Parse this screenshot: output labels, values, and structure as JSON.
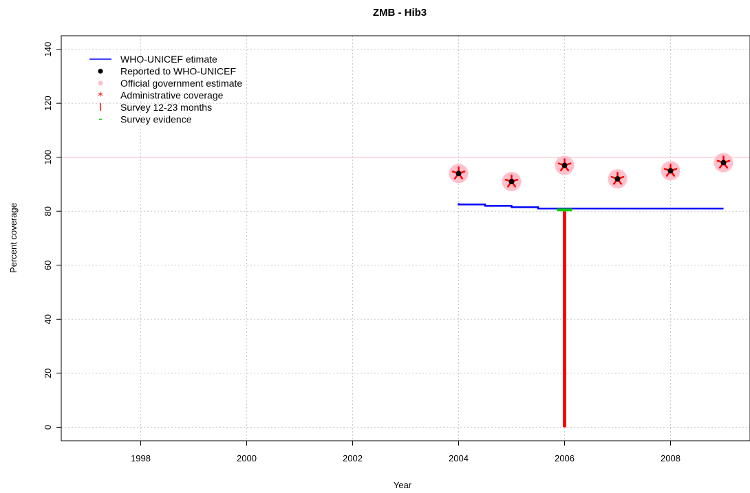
{
  "chart_data": {
    "type": "line",
    "title": "ZMB  -  Hib3",
    "xlabel": "Year",
    "ylabel": "Percent coverage",
    "xlim": [
      1996.5,
      2009.5
    ],
    "ylim": [
      -5,
      145
    ],
    "x_ticks": [
      1998,
      2000,
      2002,
      2004,
      2006,
      2008
    ],
    "y_ticks": [
      0,
      20,
      40,
      60,
      80,
      100,
      120,
      140
    ],
    "grid": true,
    "reference_line_y": 100,
    "legend_position": "top-left",
    "legend": [
      {
        "label": "WHO-UNICEF etimate",
        "symbol": "line",
        "color": "#0000ff"
      },
      {
        "label": "Reported to WHO-UNICEF",
        "symbol": "dot",
        "color": "#000000"
      },
      {
        "label": "Official government estimate",
        "symbol": "dot",
        "color": "#ffc0cb"
      },
      {
        "label": "Administrative coverage",
        "symbol": "star",
        "color": "#ff0000"
      },
      {
        "label": "Survey 12-23 months",
        "symbol": "bar",
        "color": "#ff0000"
      },
      {
        "label": "Survey evidence",
        "symbol": "dash",
        "color": "#00cc00"
      }
    ],
    "series": [
      {
        "name": "WHO-UNICEF etimate",
        "kind": "line",
        "color": "#0000ff",
        "x": [
          2004,
          2004.5,
          2005,
          2005.5,
          2006,
          2007,
          2008,
          2009
        ],
        "y": [
          83,
          82.5,
          82,
          81.5,
          81,
          81,
          81,
          81
        ]
      },
      {
        "name": "Reported to WHO-UNICEF",
        "kind": "point",
        "color": "#000000",
        "x": [
          2004,
          2005,
          2006,
          2007,
          2008,
          2009
        ],
        "y": [
          94,
          91,
          97,
          92,
          95,
          98
        ]
      },
      {
        "name": "Official government estimate",
        "kind": "point",
        "color": "#ffc0cb",
        "x": [
          2004,
          2005,
          2006,
          2007,
          2008,
          2009
        ],
        "y": [
          94,
          91,
          97,
          92,
          95,
          98
        ]
      },
      {
        "name": "Administrative coverage",
        "kind": "star",
        "color": "#ff0000",
        "x": [
          2004,
          2005,
          2006,
          2007,
          2008,
          2009
        ],
        "y": [
          94,
          91,
          97,
          92,
          95,
          98
        ]
      },
      {
        "name": "Survey 12-23 months",
        "kind": "vbar",
        "color": "#ff0000",
        "x": [
          2006
        ],
        "y": [
          80
        ]
      },
      {
        "name": "Survey evidence",
        "kind": "dash",
        "color": "#00cc00",
        "x": [
          2006
        ],
        "y": [
          80.5
        ]
      }
    ]
  }
}
